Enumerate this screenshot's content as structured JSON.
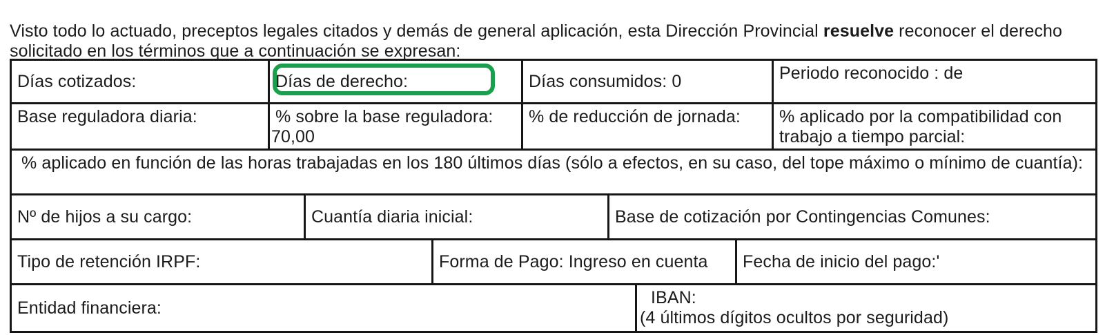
{
  "highlight": {
    "color": "#1aa04d",
    "border_style": "border-color:#1aa04d"
  },
  "intro": {
    "text_before_bold": "Visto todo lo actuado, preceptos legales citados y demás de general aplicación, esta Dirección Provincial ",
    "bold": "resuelve",
    "text_after_bold": " reconocer el derecho solicitado en los términos que a continuación se expresan:"
  },
  "table": {
    "row1": {
      "dias_cotizados": "Días cotizados:",
      "dias_derecho": "Días de derecho:",
      "dias_consumidos": "Días consumidos: 0",
      "periodo_reconocido": "Periodo reconocido : de"
    },
    "row2": {
      "base_reguladora": "Base reguladora diaria:",
      "pct_base_label": "% sobre la base reguladora:",
      "pct_base_value": "70,00",
      "pct_reduccion": "% de reducción de jornada:",
      "pct_compatibilidad": "% aplicado por la compatibilidad con trabajo a tiempo parcial:"
    },
    "row3": {
      "pct_horas": "% aplicado en función de las horas trabajadas en los 180 últimos días (sólo a efectos, en su caso, del tope máximo o mínimo de cuantía):"
    },
    "row4": {
      "num_hijos": "Nº de hijos a su cargo:",
      "cuantia_diaria": "Cuantía diaria inicial:",
      "base_cotizacion": "Base de cotización por Contingencias Comunes:"
    },
    "row5": {
      "tipo_retencion": "Tipo de retención IRPF:",
      "forma_pago": "Forma de Pago: Ingreso en cuenta",
      "fecha_inicio": "Fecha de inicio del pago:'"
    },
    "row6": {
      "entidad_financiera": "Entidad financiera:",
      "iban_label": "IBAN:",
      "iban_note": "(4 últimos dígitos ocultos por seguridad)"
    }
  }
}
